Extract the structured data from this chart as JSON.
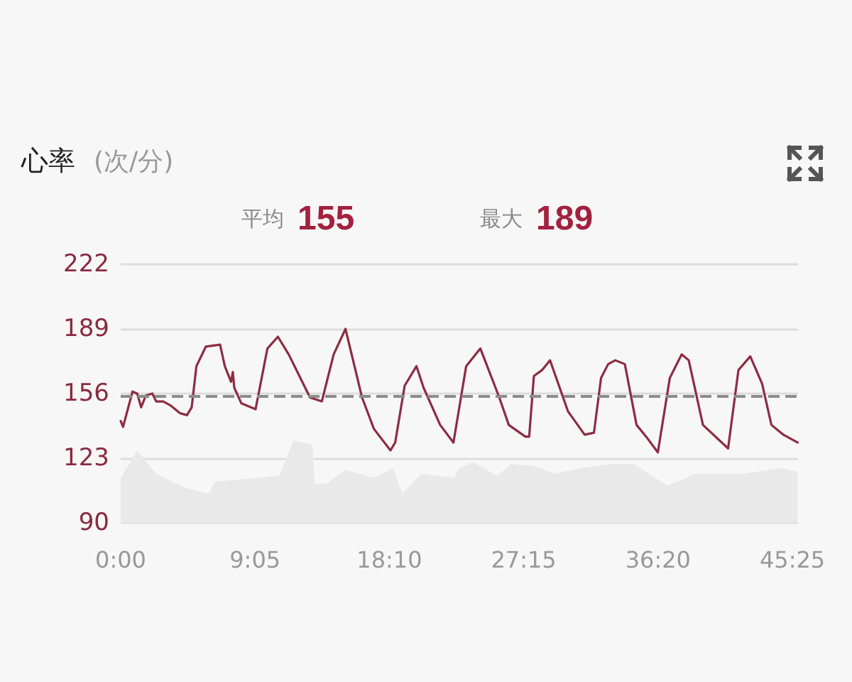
{
  "chart_data": {
    "type": "line",
    "title": "心率",
    "subtitle": "(次/分)",
    "annotations": [
      "平均 155",
      "最大 189"
    ],
    "xlim": [
      0,
      45.8
    ],
    "xticks": [
      {
        "value": 0,
        "label": "0:00"
      },
      {
        "value": 9.0833,
        "label": "9:05"
      },
      {
        "value": 18.1667,
        "label": "18:10"
      },
      {
        "value": 27.25,
        "label": "27:15"
      },
      {
        "value": 36.3333,
        "label": "36:20"
      },
      {
        "value": 45.4167,
        "label": "45:25"
      }
    ],
    "ylim": [
      90,
      222
    ],
    "yticks": [
      90,
      123,
      156,
      189,
      222
    ],
    "grid": "y",
    "marker": "none",
    "line_style": "solid",
    "ref_lines": [
      {
        "axis": "y",
        "value": 155,
        "color": "#8c8c8c",
        "line_style": "dashed"
      }
    ],
    "series": [
      {
        "type": "area",
        "color": "#e9e9e9",
        "x": [
          0,
          1.12,
          2.4,
          4.32,
          5.92,
          6.4,
          10.72,
          11.68,
          12.96,
          13.12,
          13.92,
          15.2,
          17.12,
          18.4,
          19.04,
          20.32,
          22.56,
          22.9,
          23.84,
          25.44,
          26.4,
          28.0,
          29.28,
          31.2,
          33.12,
          34.72,
          36.96,
          38.88,
          42.08,
          44.64,
          45.77
        ],
        "values": [
          113,
          127,
          115,
          108,
          105,
          111,
          114,
          132,
          130,
          110,
          110,
          117,
          113,
          118,
          105,
          115,
          113,
          118,
          121,
          114,
          120,
          119,
          115,
          118,
          120,
          120,
          109,
          115,
          115,
          118,
          116
        ]
      },
      {
        "color": "#8e2c42",
        "x": [
          0,
          0.16,
          0.8,
          1.12,
          1.38,
          1.7,
          2.14,
          2.4,
          2.88,
          3.36,
          4.0,
          4.48,
          4.8,
          5.12,
          5.76,
          6.72,
          7.04,
          7.46,
          7.58,
          7.68,
          8.16,
          9.12,
          9.92,
          10.63,
          11.36,
          12.8,
          13.6,
          14.4,
          15.2,
          16.32,
          17.12,
          18.24,
          18.56,
          19.2,
          20.0,
          20.48,
          21.6,
          22.5,
          23.36,
          24.32,
          25.6,
          26.24,
          27.36,
          27.62,
          27.94,
          28.49,
          29.03,
          30.24,
          31.37,
          32.0,
          32.48,
          32.96,
          33.44,
          34.09,
          34.88,
          35.53,
          36.32,
          37.13,
          37.93,
          38.41,
          39.37,
          41.07,
          41.77,
          42.57,
          43.37,
          44.0,
          44.81,
          45.77
        ],
        "values": [
          142,
          139,
          157,
          156,
          149,
          155,
          156,
          152,
          152,
          150,
          146,
          145,
          149,
          170,
          180,
          181,
          170,
          162,
          167,
          159,
          151,
          148,
          179,
          185,
          176,
          154,
          152,
          176,
          189,
          154,
          138,
          127,
          131,
          160,
          170,
          159,
          140,
          131,
          170,
          179,
          154,
          140,
          134,
          134,
          165,
          168,
          173,
          147,
          135,
          136,
          164,
          171,
          173,
          171,
          140,
          134,
          126,
          164,
          176,
          173,
          140,
          128,
          168,
          175,
          161,
          140,
          135,
          131
        ]
      }
    ]
  }
}
